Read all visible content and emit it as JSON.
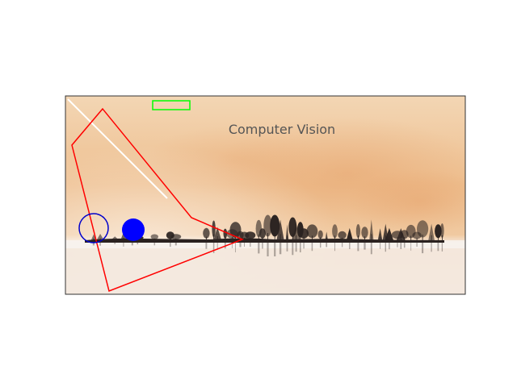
{
  "figure": {
    "caption": "Computer Vision",
    "scene": "lakeside-treeline-at-sunset",
    "colors": {
      "sky_top": "#f2d2ae",
      "sky_mid": "#eab98a",
      "haze": "#f1cba4",
      "water": "#f4ece3",
      "trees": "#2a2220",
      "frame": "#333333"
    },
    "overlays": [
      {
        "shape": "line",
        "color": "#ffffff"
      },
      {
        "shape": "rectangle",
        "color": "#00ff00",
        "filled": false
      },
      {
        "shape": "circle",
        "color": "#0000cc",
        "filled": false
      },
      {
        "shape": "circle",
        "color": "#0000ff",
        "filled": true
      },
      {
        "shape": "polygon",
        "color": "#ff0000",
        "filled": false
      }
    ]
  }
}
